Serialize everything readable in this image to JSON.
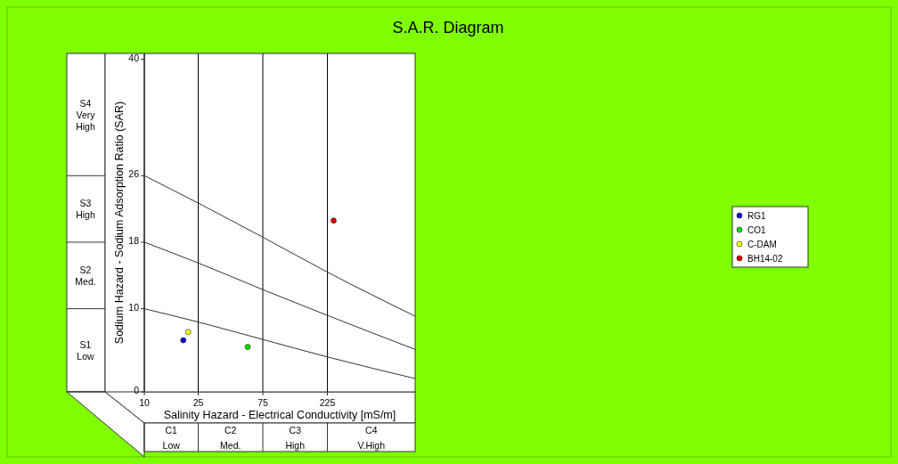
{
  "chart_data": {
    "type": "scatter",
    "title": "S.A.R. Diagram",
    "xlabel": "Salinity Hazard - Electrical Conductivity [mS/m]",
    "ylabel": "Sodium Hazard - Sodium Adsorption Ratio (SAR)",
    "log": "x",
    "xlim": [
      10,
      1000
    ],
    "xticks": [
      10,
      25,
      75,
      225
    ],
    "ylim": [
      0,
      40.7
    ],
    "yticks": [
      0,
      10,
      18,
      26,
      40
    ],
    "grid": "x",
    "legend": "right",
    "marker": "circle",
    "annotations": [
      "S4 Very High",
      "S3 High",
      "S2 Med.",
      "S1 Low",
      "C1 Low",
      "C2 Med.",
      "C3 High",
      "C4 V.High"
    ],
    "series": [
      {
        "name": "RG1",
        "color": "#0000e0",
        "x": [
          19.4
        ],
        "values": [
          6.2
        ]
      },
      {
        "name": "CO1",
        "color": "#00e000",
        "x": [
          58
        ],
        "values": [
          5.4
        ]
      },
      {
        "name": "C-DAM",
        "color": "#ffff00",
        "x": [
          21.1
        ],
        "values": [
          7.2
        ]
      },
      {
        "name": "BH14-02",
        "color": "#e00000",
        "x": [
          250
        ],
        "values": [
          20.6
        ]
      },
      {
        "type": "line",
        "color": "#333333",
        "line_style": "solid",
        "marker": "none",
        "x": [
          10,
          25,
          75,
          225,
          1000
        ],
        "values": [
          26,
          22.7,
          18.6,
          14.4,
          9.1
        ]
      },
      {
        "type": "line",
        "color": "#333333",
        "line_style": "solid",
        "marker": "none",
        "x": [
          10,
          25,
          75,
          225,
          1000
        ],
        "values": [
          18,
          15.5,
          12.3,
          9.2,
          5.1
        ]
      },
      {
        "type": "line",
        "color": "#333333",
        "line_style": "solid",
        "marker": "none",
        "x": [
          10,
          25,
          75,
          225,
          1000
        ],
        "values": [
          10,
          8.4,
          6.3,
          4.2,
          1.6
        ]
      }
    ]
  }
}
